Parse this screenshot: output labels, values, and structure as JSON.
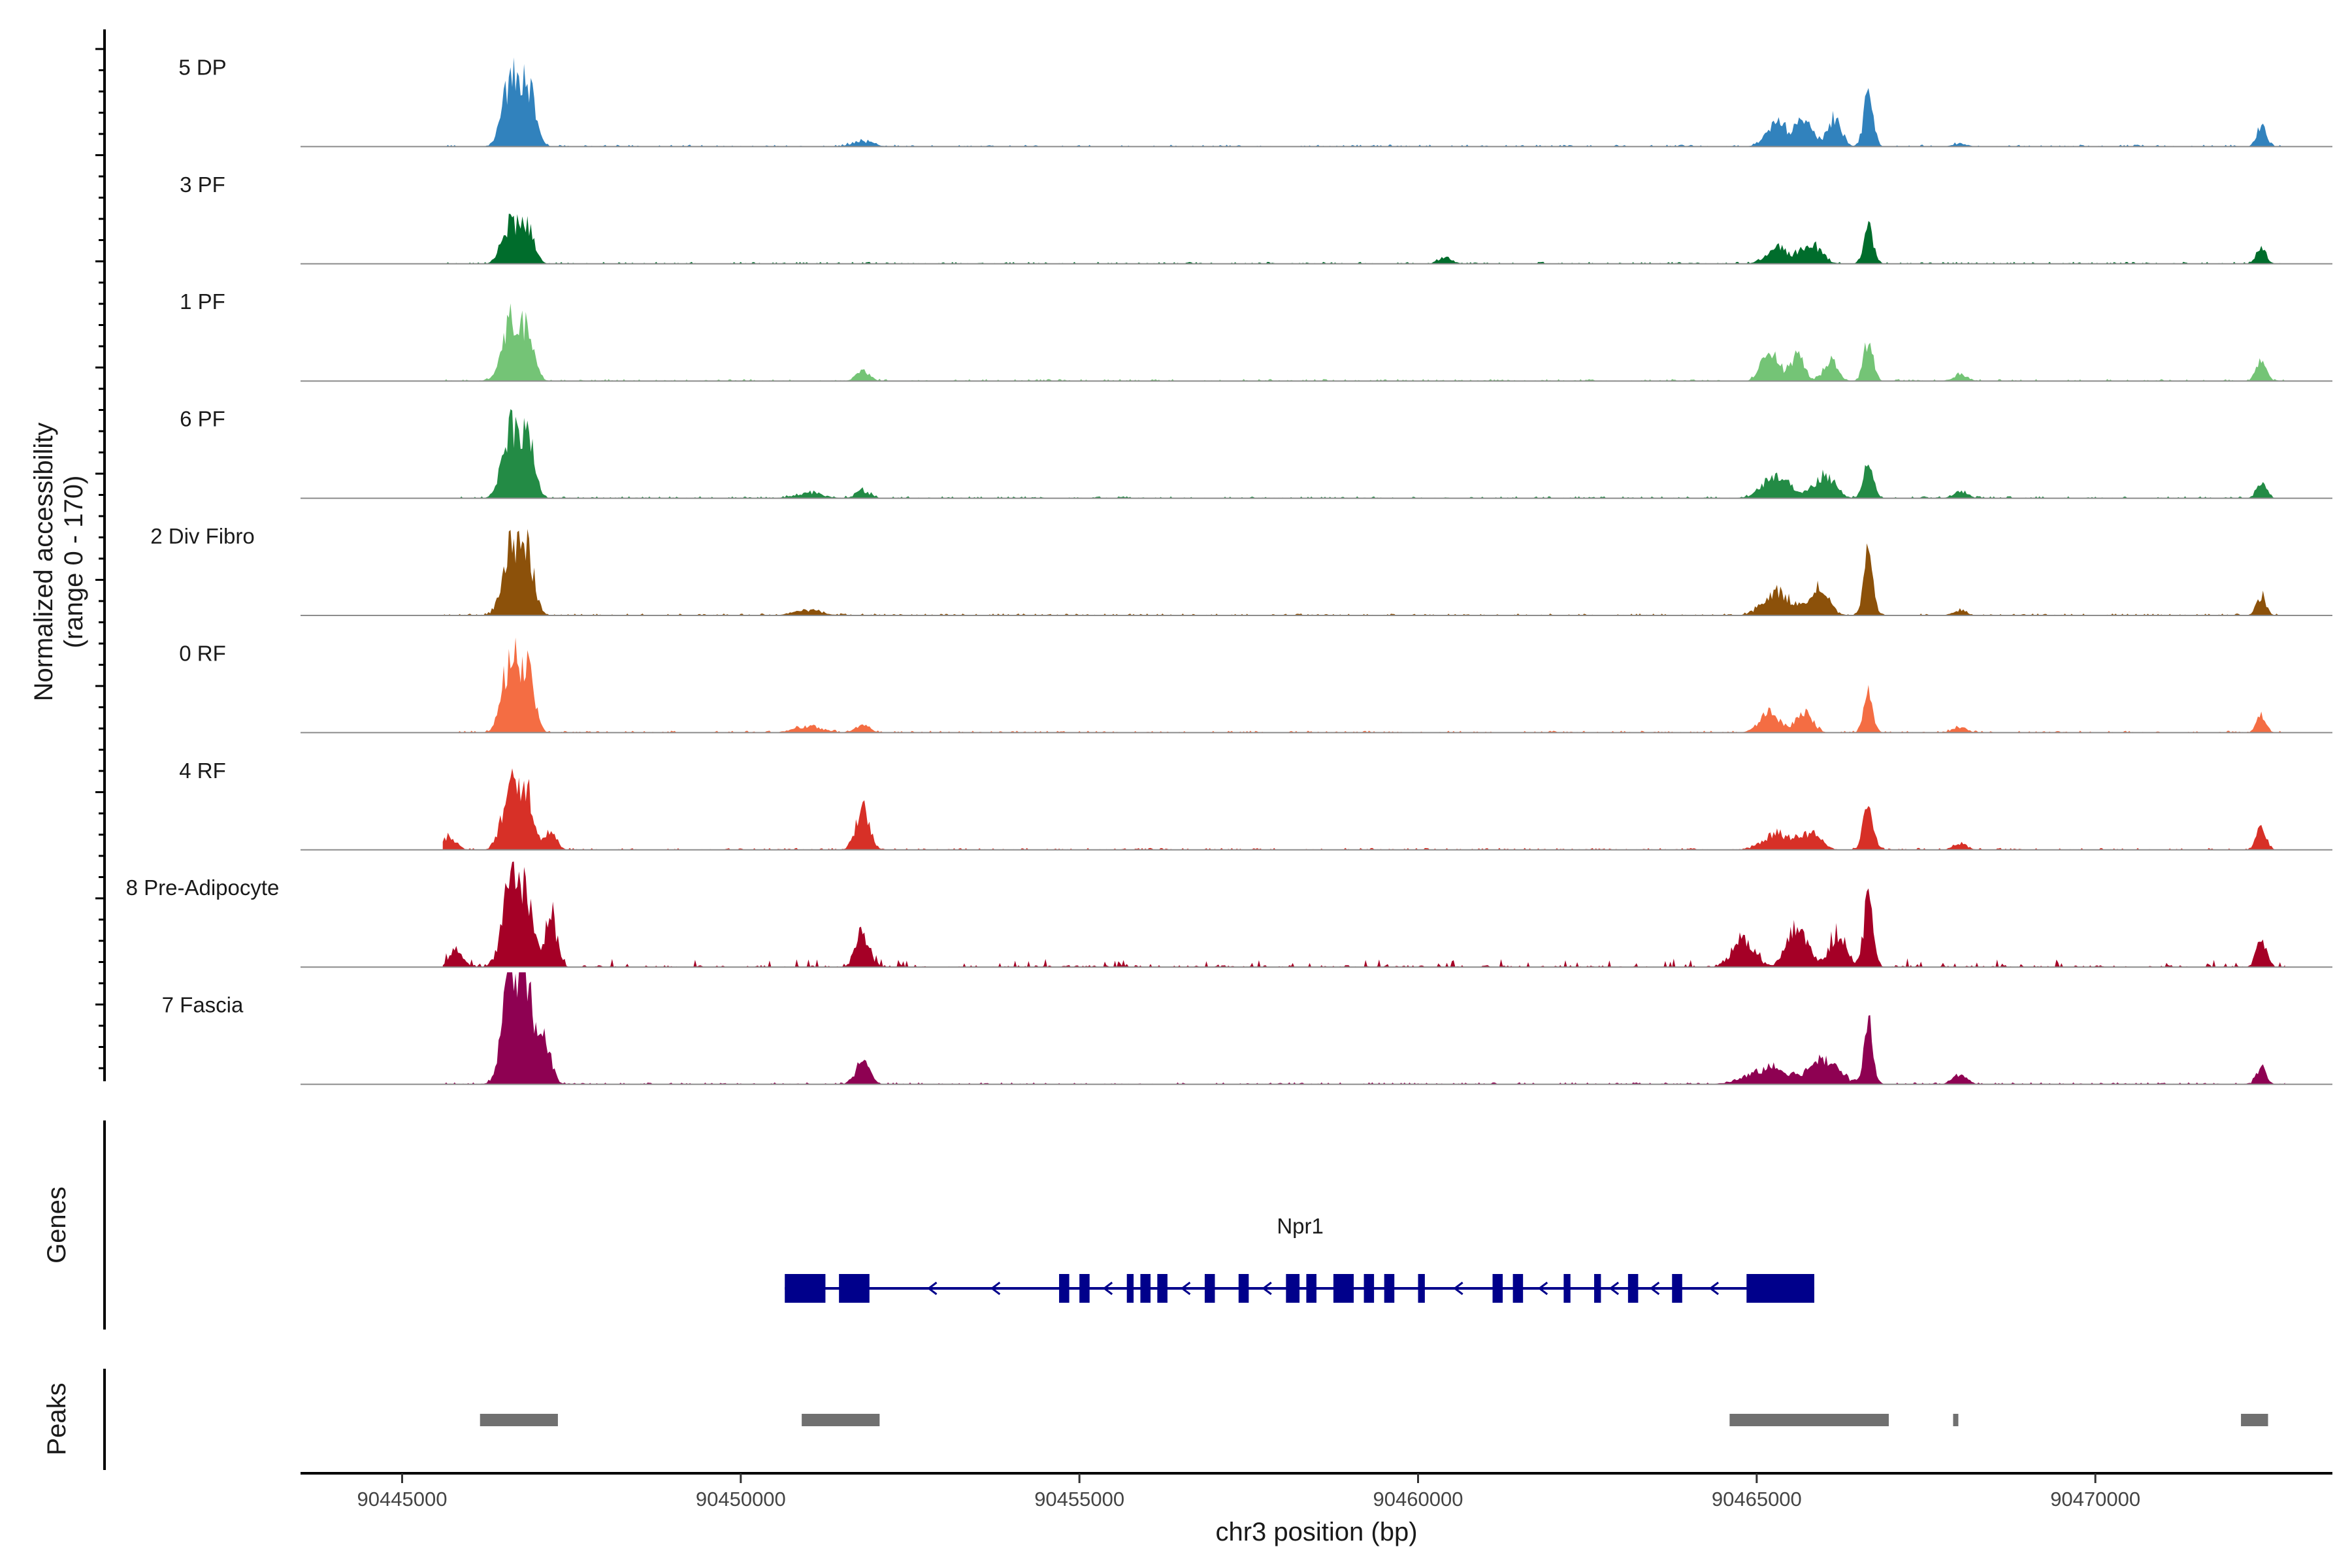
{
  "chart_data": {
    "type": "area",
    "region": "chr3",
    "xlabel": "chr3 position (bp)",
    "ylabel": "Normalized accessibility",
    "ylabel_range": "(range 0 - 170)",
    "ylim": [
      0,
      170
    ],
    "xlim": [
      90443500,
      90473500
    ],
    "x_ticks": [
      90445000,
      90450000,
      90455000,
      90460000,
      90465000,
      90470000
    ],
    "x_tick_labels": [
      "90445000",
      "90450000",
      "90455000",
      "90460000",
      "90465000",
      "90470000"
    ],
    "panel_labels": {
      "genes": "Genes",
      "peaks": "Peaks"
    },
    "series": [
      {
        "name": "5 DP",
        "color": "#3182bd",
        "peaks": [
          [
            90446600,
            95,
            120
          ],
          [
            90446850,
            90,
            110
          ],
          [
            90451800,
            8,
            150
          ],
          [
            90465300,
            35,
            150
          ],
          [
            90465700,
            40,
            120
          ],
          [
            90466150,
            45,
            100
          ],
          [
            90466650,
            80,
            70
          ],
          [
            90468000,
            5,
            100
          ],
          [
            90472450,
            30,
            70
          ]
        ]
      },
      {
        "name": "3 PF",
        "color": "#006d2c",
        "peaks": [
          [
            90446600,
            60,
            120
          ],
          [
            90446850,
            55,
            100
          ],
          [
            90460400,
            10,
            100
          ],
          [
            90465300,
            25,
            160
          ],
          [
            90465800,
            30,
            150
          ],
          [
            90466650,
            55,
            70
          ],
          [
            90472450,
            25,
            70
          ]
        ]
      },
      {
        "name": "1 PF",
        "color": "#74c476",
        "peaks": [
          [
            90446600,
            90,
            120
          ],
          [
            90446850,
            70,
            100
          ],
          [
            90451800,
            15,
            100
          ],
          [
            90465200,
            45,
            120
          ],
          [
            90465600,
            40,
            100
          ],
          [
            90466100,
            30,
            100
          ],
          [
            90466650,
            60,
            70
          ],
          [
            90468000,
            10,
            100
          ],
          [
            90472450,
            30,
            70
          ]
        ]
      },
      {
        "name": "6 PF",
        "color": "#238b45",
        "peaks": [
          [
            90446600,
            100,
            120
          ],
          [
            90446850,
            90,
            100
          ],
          [
            90451000,
            8,
            200
          ],
          [
            90451800,
            12,
            100
          ],
          [
            90465300,
            35,
            200
          ],
          [
            90466000,
            35,
            150
          ],
          [
            90466650,
            65,
            70
          ],
          [
            90468000,
            10,
            100
          ],
          [
            90472450,
            25,
            70
          ]
        ]
      },
      {
        "name": "2 Div Fibro",
        "color": "#8c510a",
        "peaks": [
          [
            90446600,
            100,
            120
          ],
          [
            90446850,
            90,
            100
          ],
          [
            90451000,
            8,
            200
          ],
          [
            90465300,
            35,
            200
          ],
          [
            90465900,
            40,
            150
          ],
          [
            90466650,
            90,
            70
          ],
          [
            90468000,
            8,
            100
          ],
          [
            90472450,
            30,
            70
          ]
        ]
      },
      {
        "name": "0 RF",
        "color": "#f46d43",
        "peaks": [
          [
            90446600,
            110,
            120
          ],
          [
            90446850,
            90,
            100
          ],
          [
            90451000,
            10,
            200
          ],
          [
            90451800,
            12,
            100
          ],
          [
            90465200,
            30,
            150
          ],
          [
            90465700,
            30,
            120
          ],
          [
            90466650,
            55,
            70
          ],
          [
            90468000,
            8,
            100
          ],
          [
            90472450,
            25,
            70
          ]
        ]
      },
      {
        "name": "4 RF",
        "color": "#d73027",
        "peaks": [
          [
            90445700,
            20,
            100
          ],
          [
            90446600,
            95,
            120
          ],
          [
            90446850,
            80,
            100
          ],
          [
            90447200,
            30,
            80
          ],
          [
            90451800,
            60,
            100
          ],
          [
            90465300,
            25,
            200
          ],
          [
            90465800,
            25,
            150
          ],
          [
            90466650,
            70,
            70
          ],
          [
            90468000,
            10,
            100
          ],
          [
            90472450,
            35,
            70
          ]
        ]
      },
      {
        "name": "8 Pre-Adipocyte",
        "color": "#a50026",
        "peaks": [
          [
            90445800,
            25,
            100
          ],
          [
            90446600,
            120,
            120
          ],
          [
            90446850,
            100,
            100
          ],
          [
            90447200,
            80,
            80
          ],
          [
            90451800,
            50,
            100
          ],
          [
            90464800,
            45,
            150
          ],
          [
            90465600,
            60,
            150
          ],
          [
            90466200,
            50,
            120
          ],
          [
            90466650,
            100,
            70
          ],
          [
            90472450,
            50,
            70
          ]
        ]
      },
      {
        "name": "7 Fascia",
        "color": "#8e0152",
        "peaks": [
          [
            90446600,
            170,
            120
          ],
          [
            90446850,
            140,
            100
          ],
          [
            90447100,
            60,
            100
          ],
          [
            90451800,
            35,
            100
          ],
          [
            90465200,
            25,
            300
          ],
          [
            90466000,
            40,
            200
          ],
          [
            90466650,
            85,
            70
          ],
          [
            90468000,
            15,
            100
          ],
          [
            90472450,
            25,
            70
          ]
        ]
      }
    ],
    "genes": [
      {
        "name": "Npr1",
        "strand": "-",
        "color": "#00008b",
        "start": 90450650,
        "end": 90465850,
        "exons": [
          [
            90450650,
            90451250
          ],
          [
            90451450,
            90451900
          ],
          [
            90454700,
            90454850
          ],
          [
            90455000,
            90455150
          ],
          [
            90455700,
            90455800
          ],
          [
            90455900,
            90456050
          ],
          [
            90456150,
            90456300
          ],
          [
            90456850,
            90457000
          ],
          [
            90457350,
            90457500
          ],
          [
            90458050,
            90458250
          ],
          [
            90458350,
            90458500
          ],
          [
            90458750,
            90459050
          ],
          [
            90459200,
            90459350
          ],
          [
            90459500,
            90459650
          ],
          [
            90460000,
            90460100
          ],
          [
            90461100,
            90461250
          ],
          [
            90461400,
            90461550
          ],
          [
            90462150,
            90462250
          ],
          [
            90462600,
            90462700
          ],
          [
            90463100,
            90463250
          ],
          [
            90463750,
            90463900
          ],
          [
            90464850,
            90465850
          ]
        ]
      }
    ],
    "peaks_track": {
      "color": "#707070",
      "intervals": [
        [
          90446150,
          90447300
        ],
        [
          90450900,
          90452050
        ],
        [
          90464600,
          90466950
        ],
        [
          90467900,
          90467950
        ],
        [
          90472150,
          90472550
        ]
      ]
    }
  }
}
